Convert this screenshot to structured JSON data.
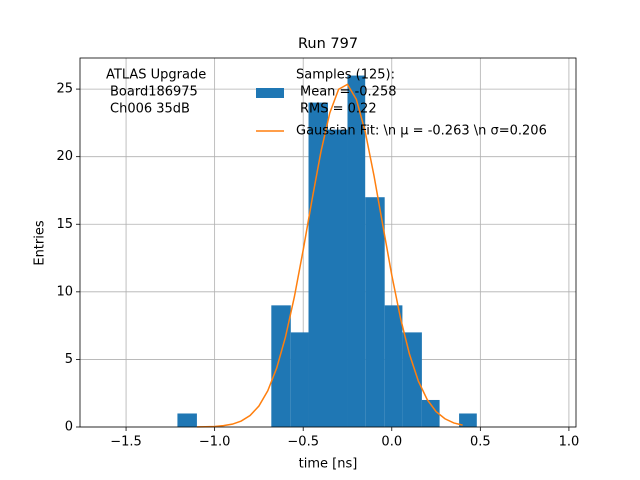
{
  "chart_data": {
    "type": "histogram",
    "title": "Run 797",
    "xlabel": "time [ns]",
    "ylabel": "Entries",
    "annotation": [
      "ATLAS Upgrade",
      "Board186975",
      "Ch006 35dB"
    ],
    "bins": [
      -1.21,
      -1.1,
      -1.0,
      -0.89,
      -0.78,
      -0.68,
      -0.57,
      -0.47,
      -0.36,
      -0.25,
      -0.15,
      -0.04,
      0.06,
      0.17,
      0.27,
      0.38,
      0.48
    ],
    "series": [
      {
        "name": [
          "Samples (125):",
          "Mean = -0.258",
          "RMS = 0.22"
        ],
        "color": "#1f77b4",
        "values": [
          1,
          0,
          0,
          0,
          0,
          9,
          7,
          24,
          22,
          26,
          17,
          9,
          7,
          2,
          0,
          1
        ]
      },
      {
        "name": "Gaussian Fit: \\n μ = -0.263 \\n σ=0.206",
        "color": "#ff7f0e",
        "x": [
          -1.1,
          -1.05,
          -1.0,
          -0.95,
          -0.9,
          -0.85,
          -0.8,
          -0.75,
          -0.7,
          -0.65,
          -0.6,
          -0.55,
          -0.5,
          -0.45,
          -0.4,
          -0.35,
          -0.3,
          -0.25,
          -0.2,
          -0.15,
          -0.1,
          -0.05,
          0.0,
          0.05,
          0.1,
          0.15,
          0.2,
          0.25,
          0.3,
          0.35,
          0.4
        ],
        "values": [
          0.01,
          0.02,
          0.04,
          0.1,
          0.21,
          0.44,
          0.85,
          1.55,
          2.68,
          4.35,
          6.66,
          9.62,
          13.1,
          16.82,
          20.36,
          23.23,
          24.99,
          25.35,
          24.24,
          21.85,
          18.57,
          14.88,
          11.24,
          8.01,
          5.38,
          3.4,
          2.03,
          1.14,
          0.61,
          0.3,
          0.14
        ]
      }
    ],
    "xlim": [
      -1.76,
      1.04
    ],
    "ylim": [
      0,
      27.3
    ],
    "xticks": [
      {
        "value": -1.5,
        "label": "−1.5"
      },
      {
        "value": -1.0,
        "label": "−1.0"
      },
      {
        "value": -0.5,
        "label": "−0.5"
      },
      {
        "value": 0.0,
        "label": "0.0"
      },
      {
        "value": 0.5,
        "label": "0.5"
      },
      {
        "value": 1.0,
        "label": "1.0"
      }
    ],
    "yticks": [
      0,
      5,
      10,
      15,
      20,
      25
    ],
    "grid": true,
    "legend": "upper center"
  }
}
